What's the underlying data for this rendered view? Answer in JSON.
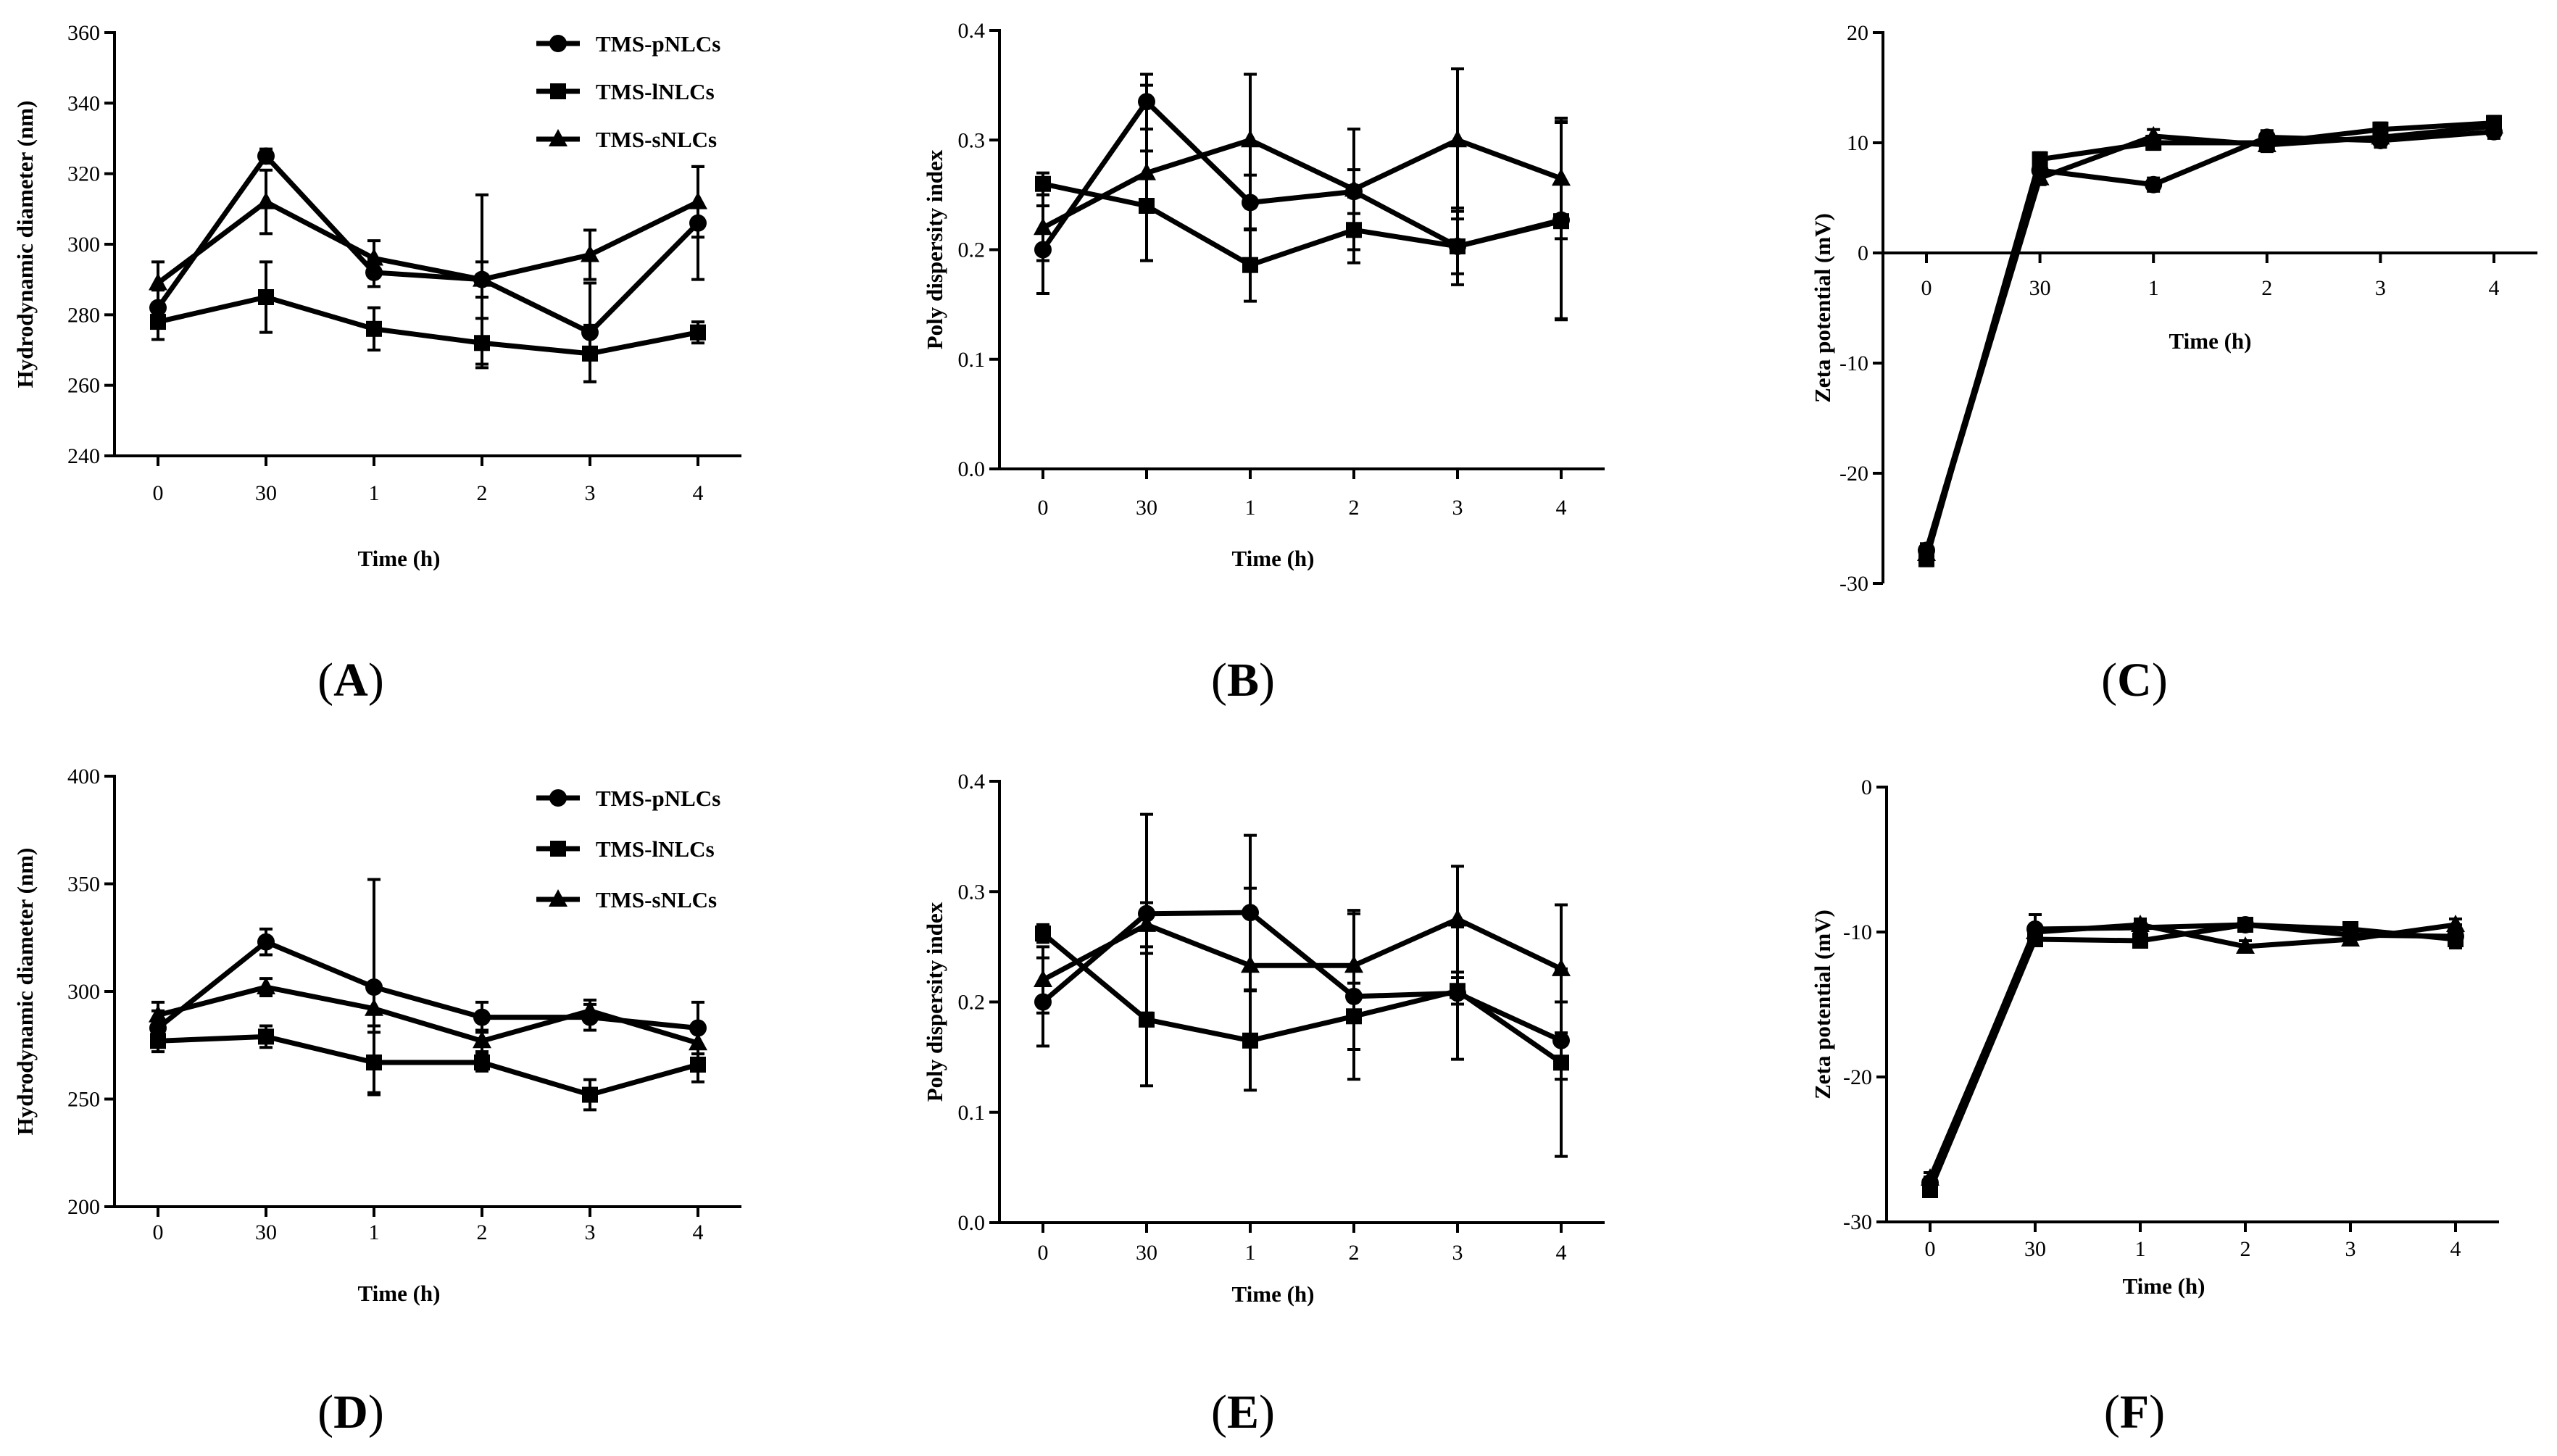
{
  "figure": {
    "x_categories": [
      "0",
      "30",
      "1",
      "2",
      "3",
      "4"
    ],
    "xlabel": "Time (h)",
    "legend": [
      "TMS-pNLCs",
      "TMS-lNLCs",
      "TMS-sNLCs"
    ]
  },
  "chart_data": [
    {
      "id": "A",
      "type": "line",
      "panel_label": {
        "open": "(",
        "letter": "A",
        "close": ")"
      },
      "xlabel": "Time (h)",
      "ylabel": "Hydrodynamic diameter (nm)",
      "categories": [
        "0",
        "30",
        "1",
        "2",
        "3",
        "4"
      ],
      "ylim": [
        240,
        360
      ],
      "yticks": [
        240,
        260,
        280,
        300,
        320,
        340,
        360
      ],
      "legend": [
        "TMS-pNLCs",
        "TMS-lNLCs",
        "TMS-sNLCs"
      ],
      "series": [
        {
          "name": "TMS-pNLCs",
          "marker": "circle",
          "values": [
            282,
            325,
            292,
            290,
            275,
            306
          ],
          "err": [
            5,
            2,
            4,
            5,
            14,
            16
          ]
        },
        {
          "name": "TMS-lNLCs",
          "marker": "square",
          "values": [
            278,
            285,
            276,
            272,
            269,
            275
          ],
          "err": [
            5,
            10,
            6,
            7,
            8,
            3
          ]
        },
        {
          "name": "TMS-sNLCs",
          "marker": "triangle",
          "values": [
            289,
            312,
            296,
            290,
            297,
            312
          ],
          "err": [
            6,
            9,
            5,
            24,
            7,
            10
          ]
        }
      ]
    },
    {
      "id": "B",
      "type": "line",
      "panel_label": {
        "open": "(",
        "letter": "B",
        "close": ")"
      },
      "xlabel": "Time (h)",
      "ylabel": "Poly dispersity index",
      "categories": [
        "0",
        "30",
        "1",
        "2",
        "3",
        "4"
      ],
      "ylim": [
        0,
        0.4
      ],
      "yticks": [
        "0.0",
        "0.1",
        "0.2",
        "0.3",
        "0.4"
      ],
      "series": [
        {
          "name": "TMS-pNLCs",
          "marker": "circle",
          "values": [
            0.2,
            0.335,
            0.243,
            0.253,
            0.203,
            0.227
          ],
          "err": [
            0.04,
            0.025,
            0.025,
            0.02,
            0.025,
            0.09
          ]
        },
        {
          "name": "TMS-lNLCs",
          "marker": "square",
          "values": [
            0.26,
            0.24,
            0.186,
            0.218,
            0.203,
            0.226
          ],
          "err": [
            0.01,
            0.05,
            0.033,
            0.03,
            0.035,
            0.09
          ]
        },
        {
          "name": "TMS-sNLCs",
          "marker": "triangle",
          "values": [
            0.22,
            0.27,
            0.3,
            0.255,
            0.3,
            0.265
          ],
          "err": [
            0.03,
            0.08,
            0.06,
            0.055,
            0.065,
            0.055
          ]
        }
      ]
    },
    {
      "id": "C",
      "type": "line",
      "panel_label": {
        "open": "(",
        "letter": "C",
        "close": ")"
      },
      "xlabel": "Time (h)",
      "ylabel": "Zeta potential (mV)",
      "categories": [
        "0",
        "30",
        "1",
        "2",
        "3",
        "4"
      ],
      "ylim": [
        -30,
        20
      ],
      "yticks": [
        -30,
        -20,
        -10,
        0,
        10,
        20
      ],
      "series": [
        {
          "name": "TMS-pNLCs",
          "marker": "circle",
          "values": [
            -27,
            7.5,
            6.2,
            10.5,
            10.2,
            11.0
          ],
          "err": [
            0.6,
            0.6,
            0.6,
            0.6,
            0.6,
            0.6
          ]
        },
        {
          "name": "TMS-lNLCs",
          "marker": "square",
          "values": [
            -27.8,
            8.5,
            10.0,
            10.0,
            11.2,
            11.8
          ],
          "err": [
            0.6,
            0.6,
            0.6,
            0.6,
            0.6,
            0.6
          ]
        },
        {
          "name": "TMS-sNLCs",
          "marker": "triangle",
          "values": [
            -27.3,
            6.8,
            10.6,
            9.8,
            10.5,
            11.5
          ],
          "err": [
            0.6,
            0.6,
            0.6,
            0.6,
            0.6,
            0.6
          ]
        }
      ]
    },
    {
      "id": "D",
      "type": "line",
      "panel_label": {
        "open": "(",
        "letter": "D",
        "close": ")"
      },
      "xlabel": "Time (h)",
      "ylabel": "Hydrodynamic diameter (nm)",
      "categories": [
        "0",
        "30",
        "1",
        "2",
        "3",
        "4"
      ],
      "ylim": [
        200,
        400
      ],
      "yticks": [
        200,
        250,
        300,
        350,
        400
      ],
      "legend": [
        "TMS-pNLCs",
        "TMS-lNLCs",
        "TMS-sNLCs"
      ],
      "series": [
        {
          "name": "TMS-pNLCs",
          "marker": "circle",
          "values": [
            283,
            323,
            302,
            288,
            288,
            283
          ],
          "err": [
            8,
            6,
            50,
            7,
            6,
            12
          ]
        },
        {
          "name": "TMS-lNLCs",
          "marker": "square",
          "values": [
            277,
            279,
            267,
            267,
            252,
            266
          ],
          "err": [
            5,
            5,
            14,
            4,
            7,
            8
          ]
        },
        {
          "name": "TMS-sNLCs",
          "marker": "triangle",
          "values": [
            289,
            302,
            292,
            277,
            291,
            276
          ],
          "err": [
            6,
            4,
            8,
            5,
            5,
            7
          ]
        }
      ]
    },
    {
      "id": "E",
      "type": "line",
      "panel_label": {
        "open": "(",
        "letter": "E",
        "close": ")"
      },
      "xlabel": "Time (h)",
      "ylabel": "Poly dispersity index",
      "categories": [
        "0",
        "30",
        "1",
        "2",
        "3",
        "4"
      ],
      "ylim": [
        0,
        0.4
      ],
      "yticks": [
        "0.0",
        "0.1",
        "0.2",
        "0.3",
        "0.4"
      ],
      "series": [
        {
          "name": "TMS-pNLCs",
          "marker": "circle",
          "values": [
            0.2,
            0.28,
            0.281,
            0.205,
            0.208,
            0.165
          ],
          "err": [
            0.04,
            0.09,
            0.07,
            0.075,
            0.06,
            0.035
          ]
        },
        {
          "name": "TMS-lNLCs",
          "marker": "square",
          "values": [
            0.262,
            0.184,
            0.165,
            0.187,
            0.21,
            0.145
          ],
          "err": [
            0.008,
            0.06,
            0.045,
            0.03,
            0.012,
            0.085
          ]
        },
        {
          "name": "TMS-sNLCs",
          "marker": "triangle",
          "values": [
            0.22,
            0.27,
            0.233,
            0.233,
            0.275,
            0.23
          ],
          "err": [
            0.03,
            0.02,
            0.07,
            0.05,
            0.048,
            0.058
          ]
        }
      ]
    },
    {
      "id": "F",
      "type": "line",
      "panel_label": {
        "open": "(",
        "letter": "F",
        "close": ")"
      },
      "xlabel": "Time (h)",
      "ylabel": "Zeta potential (mV)",
      "categories": [
        "0",
        "30",
        "1",
        "2",
        "3",
        "4"
      ],
      "ylim": [
        -30,
        0
      ],
      "yticks": [
        -30,
        -20,
        -10,
        0
      ],
      "series": [
        {
          "name": "TMS-pNLCs",
          "marker": "circle",
          "values": [
            -27.3,
            -9.8,
            -9.7,
            -9.5,
            -10.2,
            -10.3
          ],
          "err": [
            0.4,
            1.0,
            0.4,
            0.4,
            0.5,
            0.8
          ]
        },
        {
          "name": "TMS-lNLCs",
          "marker": "square",
          "values": [
            -27.8,
            -10.5,
            -10.6,
            -9.5,
            -9.8,
            -10.5
          ],
          "err": [
            0.4,
            0.4,
            0.4,
            0.4,
            0.4,
            0.4
          ]
        },
        {
          "name": "TMS-sNLCs",
          "marker": "triangle",
          "values": [
            -27.0,
            -10.0,
            -9.5,
            -11.0,
            -10.5,
            -9.5
          ],
          "err": [
            0.4,
            0.4,
            0.4,
            0.4,
            0.4,
            0.4
          ]
        }
      ]
    }
  ]
}
